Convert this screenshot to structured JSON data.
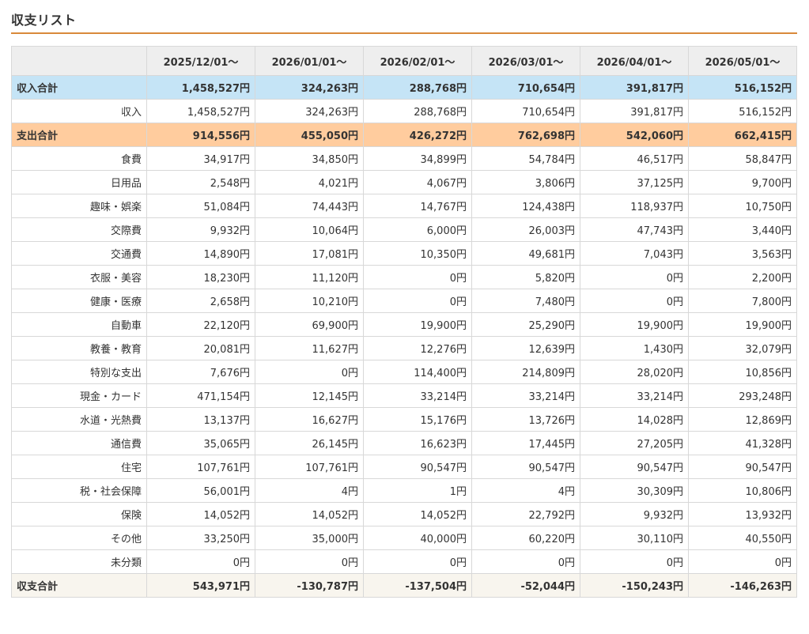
{
  "page": {
    "title": "収支リスト",
    "accent_color": "#d9893a"
  },
  "table": {
    "corner_header": "",
    "months": [
      "2025/12/01〜",
      "2026/01/01〜",
      "2026/02/01〜",
      "2026/03/01〜",
      "2026/04/01〜",
      "2026/05/01〜"
    ],
    "rows": [
      {
        "type": "income-total",
        "label": "収入合計",
        "values": [
          "1,458,527円",
          "324,263円",
          "288,768円",
          "710,654円",
          "391,817円",
          "516,152円"
        ]
      },
      {
        "type": "detail",
        "label": "収入",
        "values": [
          "1,458,527円",
          "324,263円",
          "288,768円",
          "710,654円",
          "391,817円",
          "516,152円"
        ]
      },
      {
        "type": "expense-total",
        "label": "支出合計",
        "values": [
          "914,556円",
          "455,050円",
          "426,272円",
          "762,698円",
          "542,060円",
          "662,415円"
        ]
      },
      {
        "type": "detail",
        "label": "食費",
        "values": [
          "34,917円",
          "34,850円",
          "34,899円",
          "54,784円",
          "46,517円",
          "58,847円"
        ]
      },
      {
        "type": "detail",
        "label": "日用品",
        "values": [
          "2,548円",
          "4,021円",
          "4,067円",
          "3,806円",
          "37,125円",
          "9,700円"
        ]
      },
      {
        "type": "detail",
        "label": "趣味・娯楽",
        "values": [
          "51,084円",
          "74,443円",
          "14,767円",
          "124,438円",
          "118,937円",
          "10,750円"
        ]
      },
      {
        "type": "detail",
        "label": "交際費",
        "values": [
          "9,932円",
          "10,064円",
          "6,000円",
          "26,003円",
          "47,743円",
          "3,440円"
        ]
      },
      {
        "type": "detail",
        "label": "交通費",
        "values": [
          "14,890円",
          "17,081円",
          "10,350円",
          "49,681円",
          "7,043円",
          "3,563円"
        ]
      },
      {
        "type": "detail",
        "label": "衣服・美容",
        "values": [
          "18,230円",
          "11,120円",
          "0円",
          "5,820円",
          "0円",
          "2,200円"
        ]
      },
      {
        "type": "detail",
        "label": "健康・医療",
        "values": [
          "2,658円",
          "10,210円",
          "0円",
          "7,480円",
          "0円",
          "7,800円"
        ]
      },
      {
        "type": "detail",
        "label": "自動車",
        "values": [
          "22,120円",
          "69,900円",
          "19,900円",
          "25,290円",
          "19,900円",
          "19,900円"
        ]
      },
      {
        "type": "detail",
        "label": "教養・教育",
        "values": [
          "20,081円",
          "11,627円",
          "12,276円",
          "12,639円",
          "1,430円",
          "32,079円"
        ]
      },
      {
        "type": "detail",
        "label": "特別な支出",
        "values": [
          "7,676円",
          "0円",
          "114,400円",
          "214,809円",
          "28,020円",
          "10,856円"
        ]
      },
      {
        "type": "detail",
        "label": "現金・カード",
        "values": [
          "471,154円",
          "12,145円",
          "33,214円",
          "33,214円",
          "33,214円",
          "293,248円"
        ]
      },
      {
        "type": "detail",
        "label": "水道・光熱費",
        "values": [
          "13,137円",
          "16,627円",
          "15,176円",
          "13,726円",
          "14,028円",
          "12,869円"
        ]
      },
      {
        "type": "detail",
        "label": "通信費",
        "values": [
          "35,065円",
          "26,145円",
          "16,623円",
          "17,445円",
          "27,205円",
          "41,328円"
        ]
      },
      {
        "type": "detail",
        "label": "住宅",
        "values": [
          "107,761円",
          "107,761円",
          "90,547円",
          "90,547円",
          "90,547円",
          "90,547円"
        ]
      },
      {
        "type": "detail",
        "label": "税・社会保障",
        "values": [
          "56,001円",
          "4円",
          "1円",
          "4円",
          "30,309円",
          "10,806円"
        ]
      },
      {
        "type": "detail",
        "label": "保険",
        "values": [
          "14,052円",
          "14,052円",
          "14,052円",
          "22,792円",
          "9,932円",
          "13,932円"
        ]
      },
      {
        "type": "detail",
        "label": "その他",
        "values": [
          "33,250円",
          "35,000円",
          "40,000円",
          "60,220円",
          "30,110円",
          "40,550円"
        ]
      },
      {
        "type": "detail",
        "label": "未分類",
        "values": [
          "0円",
          "0円",
          "0円",
          "0円",
          "0円",
          "0円"
        ]
      },
      {
        "type": "balance-total",
        "label": "収支合計",
        "values": [
          "543,971円",
          "-130,787円",
          "-137,504円",
          "-52,044円",
          "-150,243円",
          "-146,263円"
        ]
      }
    ]
  },
  "colors": {
    "header_bg": "#eeeeee",
    "income_total_bg": "#c5e4f6",
    "expense_total_bg": "#ffcc9e",
    "balance_total_bg": "#f8f5ee",
    "border": "#d8d8d8"
  }
}
